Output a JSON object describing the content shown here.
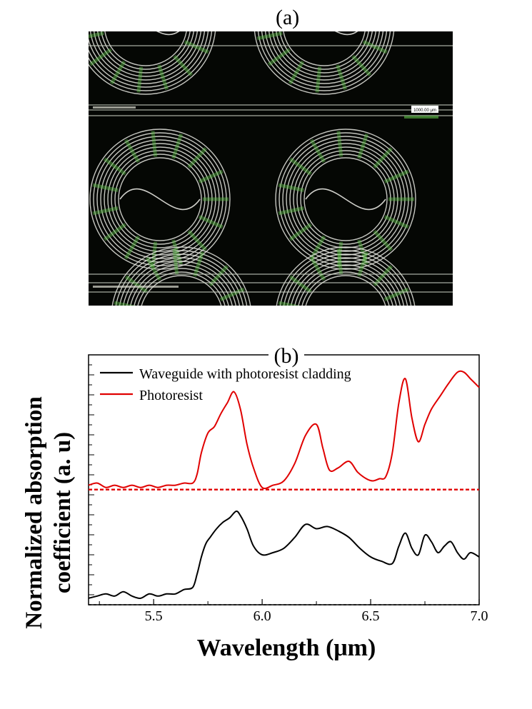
{
  "panel_a": {
    "label": "(a)",
    "scale_bar_text": "1000.00 μm",
    "colors": {
      "background": "#050704",
      "rings": "#e6e6e0",
      "green": "#5fbf4a"
    }
  },
  "chart_data": {
    "type": "line",
    "panel_label": "(b)",
    "xlabel": "Wavelength (μm)",
    "ylabel": "Normalized absorption coefficient (a. u)",
    "xlim": [
      5.2,
      7.0
    ],
    "ylim": [
      0,
      1.15
    ],
    "xticks": [
      5.5,
      6.0,
      6.5,
      7.0
    ],
    "xtick_labels": [
      "5.5",
      "6.0",
      "6.5",
      "7.0"
    ],
    "legend_position": "top-left",
    "series": [
      {
        "name": "Waveguide with photoresist cladding",
        "color": "#000000",
        "baseline": 0.0,
        "x": [
          5.2,
          5.24,
          5.28,
          5.32,
          5.36,
          5.4,
          5.44,
          5.48,
          5.52,
          5.56,
          5.6,
          5.64,
          5.68,
          5.7,
          5.72,
          5.74,
          5.76,
          5.79,
          5.82,
          5.85,
          5.88,
          5.9,
          5.93,
          5.96,
          6.0,
          6.05,
          6.1,
          6.15,
          6.2,
          6.25,
          6.3,
          6.35,
          6.4,
          6.45,
          6.5,
          6.55,
          6.6,
          6.63,
          6.66,
          6.69,
          6.72,
          6.75,
          6.78,
          6.81,
          6.84,
          6.87,
          6.9,
          6.93,
          6.96,
          7.0
        ],
        "y": [
          0.03,
          0.04,
          0.05,
          0.04,
          0.06,
          0.04,
          0.03,
          0.05,
          0.04,
          0.05,
          0.05,
          0.07,
          0.08,
          0.14,
          0.22,
          0.28,
          0.31,
          0.35,
          0.38,
          0.4,
          0.43,
          0.41,
          0.35,
          0.27,
          0.23,
          0.24,
          0.26,
          0.31,
          0.37,
          0.35,
          0.36,
          0.34,
          0.31,
          0.26,
          0.22,
          0.2,
          0.19,
          0.27,
          0.33,
          0.26,
          0.23,
          0.32,
          0.29,
          0.24,
          0.27,
          0.29,
          0.24,
          0.21,
          0.24,
          0.22
        ]
      },
      {
        "name": "Photoresist",
        "color": "#e00000",
        "baseline": 0.53,
        "x": [
          5.2,
          5.24,
          5.28,
          5.32,
          5.36,
          5.4,
          5.44,
          5.48,
          5.52,
          5.56,
          5.6,
          5.64,
          5.68,
          5.7,
          5.72,
          5.75,
          5.78,
          5.81,
          5.84,
          5.87,
          5.9,
          5.93,
          5.96,
          6.0,
          6.05,
          6.1,
          6.15,
          6.2,
          6.25,
          6.28,
          6.31,
          6.35,
          6.4,
          6.44,
          6.48,
          6.51,
          6.54,
          6.57,
          6.6,
          6.63,
          6.66,
          6.69,
          6.72,
          6.75,
          6.78,
          6.82,
          6.86,
          6.9,
          6.93,
          6.96,
          7.0
        ],
        "y": [
          0.55,
          0.56,
          0.54,
          0.55,
          0.54,
          0.55,
          0.54,
          0.55,
          0.54,
          0.55,
          0.55,
          0.56,
          0.56,
          0.6,
          0.7,
          0.79,
          0.82,
          0.88,
          0.93,
          0.98,
          0.9,
          0.74,
          0.63,
          0.54,
          0.55,
          0.57,
          0.65,
          0.78,
          0.83,
          0.72,
          0.62,
          0.63,
          0.66,
          0.61,
          0.58,
          0.57,
          0.58,
          0.59,
          0.7,
          0.93,
          1.04,
          0.86,
          0.75,
          0.83,
          0.9,
          0.96,
          1.02,
          1.07,
          1.07,
          1.04,
          1.0
        ]
      }
    ]
  }
}
